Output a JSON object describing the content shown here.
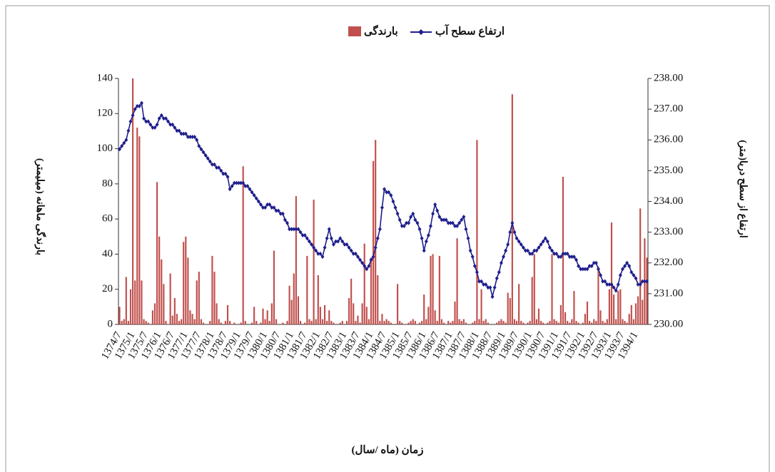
{
  "chart_data": {
    "type": "bar",
    "x_label": "زمان (ماه /سال)",
    "y_label": "بارندگی ماهانه (میلیمتر)",
    "y2_label": "ارتفاع از سطح دریا(متر)",
    "categories": [
      "1374/7",
      null,
      null,
      null,
      null,
      null,
      "1375/1",
      null,
      null,
      null,
      null,
      null,
      "1375/7",
      null,
      null,
      null,
      null,
      null,
      "1376/1",
      null,
      null,
      null,
      null,
      null,
      "1376/7",
      null,
      null,
      null,
      null,
      null,
      "1377/1",
      null,
      null,
      null,
      null,
      null,
      "1377/7",
      null,
      null,
      null,
      null,
      null,
      "1378/1",
      null,
      null,
      null,
      null,
      null,
      "1378/7",
      null,
      null,
      null,
      null,
      null,
      "1379/1",
      null,
      null,
      null,
      null,
      null,
      "1379/7",
      null,
      null,
      null,
      null,
      null,
      "1380/1",
      null,
      null,
      null,
      null,
      null,
      "1380/7",
      null,
      null,
      null,
      null,
      null,
      "1381/1",
      null,
      null,
      null,
      null,
      null,
      "1381/7",
      null,
      null,
      null,
      null,
      null,
      "1382/1",
      null,
      null,
      null,
      null,
      null,
      "1382/7",
      null,
      null,
      null,
      null,
      null,
      "1383/1",
      null,
      null,
      null,
      null,
      null,
      "1383/7",
      null,
      null,
      null,
      null,
      null,
      "1384/1",
      null,
      null,
      null,
      null,
      null,
      "1384/7",
      null,
      null,
      null,
      null,
      null,
      "1385/1",
      null,
      null,
      null,
      null,
      null,
      "1385/7",
      null,
      null,
      null,
      null,
      null,
      "1386/1",
      null,
      null,
      null,
      null,
      null,
      "1386/7",
      null,
      null,
      null,
      null,
      null,
      "1387/1",
      null,
      null,
      null,
      null,
      null,
      "1387/7",
      null,
      null,
      null,
      null,
      null,
      "1388/1",
      null,
      null,
      null,
      null,
      null,
      "1388/7",
      null,
      null,
      null,
      null,
      null,
      "1389/1",
      null,
      null,
      null,
      null,
      null,
      "1389/7",
      null,
      null,
      null,
      null,
      null,
      "1390/1",
      null,
      null,
      null,
      null,
      null,
      "1390/7",
      null,
      null,
      null,
      null,
      null,
      "1391/1",
      null,
      null,
      null,
      null,
      null,
      "1391/7",
      null,
      null,
      null,
      null,
      null,
      "1392/1",
      null,
      null,
      null,
      null,
      null,
      "1392/7",
      null,
      null,
      null,
      null,
      null,
      "1393/1",
      null,
      null,
      null,
      null,
      null,
      "1393/7",
      null,
      null,
      null,
      null,
      null,
      "1394/1",
      null,
      null,
      null,
      null,
      null
    ],
    "series": [
      {
        "name": "بارندگی",
        "type": "bar",
        "color": "#c0504d",
        "values": [
          10,
          2,
          3,
          27,
          2,
          20,
          140,
          25,
          112,
          107,
          25,
          3,
          2,
          1,
          0,
          8,
          12,
          81,
          50,
          37,
          23,
          2,
          0,
          29,
          5,
          15,
          6,
          2,
          3,
          47,
          50,
          38,
          8,
          6,
          3,
          25,
          30,
          3,
          1,
          0,
          0,
          2,
          39,
          30,
          12,
          3,
          1,
          0,
          2,
          11,
          2,
          0,
          1,
          0,
          0,
          1,
          90,
          2,
          0,
          0,
          1,
          10,
          2,
          0,
          1,
          9,
          3,
          8,
          2,
          12,
          42,
          3,
          0,
          0,
          1,
          0,
          2,
          22,
          14,
          29,
          73,
          16,
          2,
          0,
          1,
          39,
          3,
          2,
          71,
          3,
          28,
          10,
          3,
          11,
          2,
          8,
          2,
          1,
          0,
          0,
          1,
          2,
          0,
          2,
          15,
          26,
          12,
          2,
          5,
          1,
          12,
          46,
          10,
          3,
          38,
          93,
          105,
          28,
          2,
          6,
          2,
          3,
          2,
          1,
          0,
          0,
          23,
          2,
          1,
          0,
          0,
          1,
          2,
          3,
          2,
          0,
          1,
          2,
          17,
          3,
          10,
          39,
          40,
          8,
          2,
          39,
          3,
          1,
          0,
          2,
          1,
          2,
          13,
          49,
          3,
          2,
          3,
          1,
          0,
          0,
          1,
          2,
          105,
          3,
          20,
          2,
          3,
          1,
          0,
          0,
          0,
          1,
          2,
          3,
          2,
          1,
          18,
          15,
          131,
          3,
          2,
          23,
          2,
          1,
          0,
          1,
          2,
          27,
          40,
          3,
          9,
          2,
          1,
          0,
          1,
          2,
          40,
          3,
          2,
          1,
          11,
          84,
          7,
          2,
          1,
          3,
          19,
          2,
          1,
          0,
          1,
          6,
          13,
          2,
          1,
          3,
          2,
          33,
          8,
          2,
          1,
          3,
          20,
          58,
          17,
          3,
          19,
          20,
          3,
          2,
          1,
          6,
          11,
          3,
          12,
          16,
          66,
          14,
          49,
          38
        ]
      },
      {
        "name": "ارتفاع سطح آب",
        "type": "line",
        "axis": "y2",
        "color": "#1f1f8c",
        "values": [
          235.7,
          235.8,
          235.9,
          236.0,
          236.3,
          236.6,
          236.8,
          237.0,
          237.1,
          237.1,
          237.2,
          236.7,
          236.6,
          236.6,
          236.5,
          236.4,
          236.4,
          236.5,
          236.7,
          236.8,
          236.7,
          236.7,
          236.6,
          236.5,
          236.5,
          236.4,
          236.3,
          236.3,
          236.2,
          236.2,
          236.2,
          236.1,
          236.1,
          236.1,
          236.1,
          236.0,
          235.8,
          235.7,
          235.6,
          235.5,
          235.4,
          235.3,
          235.2,
          235.2,
          235.1,
          235.1,
          235.0,
          234.9,
          234.9,
          234.8,
          234.4,
          234.5,
          234.6,
          234.6,
          234.6,
          234.6,
          234.6,
          234.5,
          234.5,
          234.4,
          234.3,
          234.2,
          234.1,
          234.0,
          233.9,
          233.8,
          233.8,
          233.9,
          233.9,
          233.8,
          233.8,
          233.7,
          233.7,
          233.6,
          233.6,
          233.4,
          233.3,
          233.1,
          233.1,
          233.1,
          233.1,
          233.1,
          233.0,
          232.9,
          232.9,
          232.8,
          232.7,
          232.6,
          232.5,
          232.4,
          232.3,
          232.3,
          232.2,
          232.5,
          232.8,
          233.1,
          232.8,
          232.6,
          232.7,
          232.7,
          232.8,
          232.7,
          232.6,
          232.6,
          232.5,
          232.4,
          232.3,
          232.3,
          232.2,
          232.1,
          232.0,
          231.9,
          231.8,
          231.9,
          232.1,
          232.2,
          232.5,
          232.8,
          233.1,
          233.8,
          234.4,
          234.3,
          234.3,
          234.2,
          234.0,
          233.8,
          233.6,
          233.4,
          233.2,
          233.2,
          233.3,
          233.3,
          233.5,
          233.6,
          233.4,
          233.3,
          233.1,
          232.8,
          232.4,
          232.7,
          232.9,
          233.2,
          233.6,
          233.9,
          233.7,
          233.5,
          233.4,
          233.4,
          233.4,
          233.3,
          233.3,
          233.3,
          233.2,
          233.2,
          233.3,
          233.4,
          233.5,
          233.1,
          232.8,
          232.4,
          232.2,
          231.9,
          231.7,
          231.4,
          231.4,
          231.3,
          231.3,
          231.2,
          231.2,
          230.9,
          231.2,
          231.5,
          231.7,
          232.0,
          232.2,
          232.4,
          232.6,
          233.0,
          233.3,
          233.0,
          232.8,
          232.7,
          232.6,
          232.5,
          232.4,
          232.4,
          232.3,
          232.3,
          232.4,
          232.4,
          232.5,
          232.6,
          232.7,
          232.8,
          232.7,
          232.5,
          232.4,
          232.3,
          232.3,
          232.2,
          232.2,
          232.3,
          232.3,
          232.3,
          232.2,
          232.2,
          232.2,
          232.1,
          231.9,
          231.8,
          231.8,
          231.8,
          231.8,
          231.9,
          231.9,
          232.0,
          232.0,
          231.8,
          231.6,
          231.4,
          231.4,
          231.3,
          231.3,
          231.3,
          231.2,
          231.1,
          231.3,
          231.6,
          231.8,
          231.9,
          232.0,
          231.9,
          231.7,
          231.6,
          231.5,
          231.3,
          231.3,
          231.4,
          231.4,
          231.4
        ]
      }
    ],
    "ylim": [
      0,
      140
    ],
    "yticks": [
      0,
      20,
      40,
      60,
      80,
      100,
      120,
      140
    ],
    "y2lim": [
      230,
      238
    ],
    "y2ticks": [
      {
        "value": 230,
        "label": "230.00"
      },
      {
        "value": 231,
        "label": "231.00"
      },
      {
        "value": 232,
        "label": "232.00"
      },
      {
        "value": 233,
        "label": "233.00"
      },
      {
        "value": 234,
        "label": "234.00"
      },
      {
        "value": 235,
        "label": "235.00"
      },
      {
        "value": 236,
        "label": "236.00"
      },
      {
        "value": 237,
        "label": "237.00"
      },
      {
        "value": 238,
        "label": "238.00"
      }
    ]
  }
}
